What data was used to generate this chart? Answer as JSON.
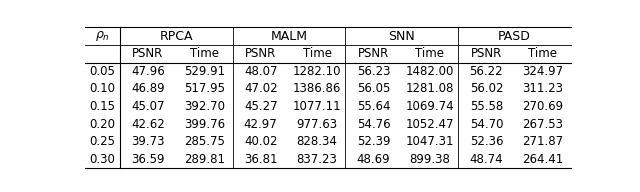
{
  "rho_n": [
    "0.05",
    "0.10",
    "0.15",
    "0.20",
    "0.25",
    "0.30"
  ],
  "methods": [
    "RPCA",
    "MALM",
    "SNN",
    "PASD"
  ],
  "data": {
    "RPCA": {
      "PSNR": [
        "47.96",
        "46.89",
        "45.07",
        "42.62",
        "39.73",
        "36.59"
      ],
      "Time": [
        "529.91",
        "517.95",
        "392.70",
        "399.76",
        "285.75",
        "289.81"
      ]
    },
    "MALM": {
      "PSNR": [
        "48.07",
        "47.02",
        "45.27",
        "42.97",
        "40.02",
        "36.81"
      ],
      "Time": [
        "1282.10",
        "1386.86",
        "1077.11",
        "977.63",
        "828.34",
        "837.23"
      ]
    },
    "SNN": {
      "PSNR": [
        "56.23",
        "56.05",
        "55.64",
        "54.76",
        "52.39",
        "48.69"
      ],
      "Time": [
        "1482.00",
        "1281.08",
        "1069.74",
        "1052.47",
        "1047.31",
        "899.38"
      ]
    },
    "PASD": {
      "PSNR": [
        "56.22",
        "56.02",
        "55.58",
        "54.70",
        "52.36",
        "48.74"
      ],
      "Time": [
        "324.97",
        "311.23",
        "270.69",
        "267.53",
        "271.87",
        "264.41"
      ]
    }
  },
  "background_color": "#ffffff",
  "font_size": 8.5,
  "header_font_size": 9.0
}
